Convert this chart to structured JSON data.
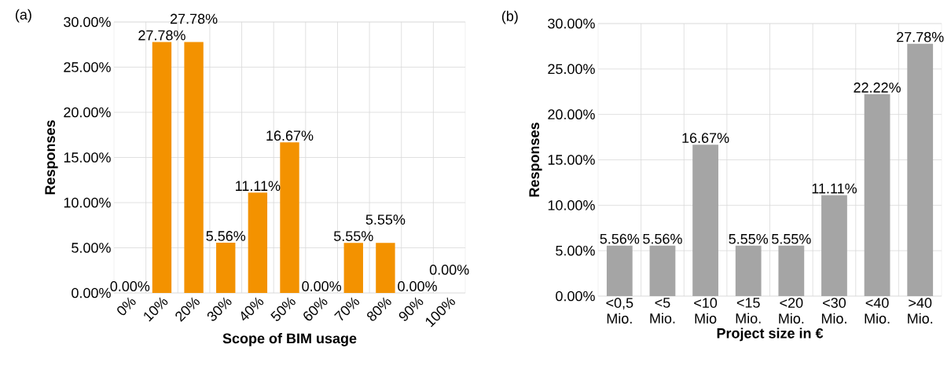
{
  "chart_data": [
    {
      "type": "bar",
      "title": "(a)",
      "xlabel": "Scope of BIM usage",
      "ylabel": "Responses",
      "categories": [
        "0%",
        "10%",
        "20%",
        "30%",
        "40%",
        "50%",
        "60%",
        "70%",
        "80%",
        "90%",
        "100%"
      ],
      "values": [
        0,
        27.78,
        27.78,
        5.56,
        11.11,
        16.67,
        0,
        5.55,
        5.55,
        0,
        0
      ],
      "value_labels": [
        "0.00%",
        "27.78%",
        "27.78%",
        "5.56%",
        "11.11%",
        "16.67%",
        "0.00%",
        "5.55%",
        "5.55%",
        "0.00%",
        "0.00%"
      ],
      "color": "#f39200",
      "ylim": [
        0,
        30
      ],
      "yticks": [
        {
          "value": 0,
          "label": "0.00%"
        },
        {
          "value": 5,
          "label": "5.00%"
        },
        {
          "value": 10,
          "label": "10.00%"
        },
        {
          "value": 15,
          "label": "15.00%"
        },
        {
          "value": 20,
          "label": "20.00%"
        },
        {
          "value": 25,
          "label": "25.00%"
        },
        {
          "value": 30,
          "label": "30.00%"
        }
      ],
      "grid": true
    },
    {
      "type": "bar",
      "title": "(b)",
      "xlabel": "Project size in €",
      "ylabel": "Responses",
      "categories": [
        "<0,5 Mio.",
        "<5 Mio.",
        "<10 Mio",
        "<15 Mio.",
        "<20 Mio.",
        "<30 Mio.",
        "<40 Mio.",
        ">40 Mio."
      ],
      "values": [
        5.56,
        5.56,
        16.67,
        5.55,
        5.55,
        11.11,
        22.22,
        27.78
      ],
      "value_labels": [
        "5.56%",
        "5.56%",
        "16.67%",
        "5.55%",
        "5.55%",
        "11.11%",
        "22.22%",
        "27.78%"
      ],
      "color": "#a5a5a5",
      "ylim": [
        0,
        30
      ],
      "yticks": [
        {
          "value": 0,
          "label": "0.00%"
        },
        {
          "value": 5,
          "label": "5.00%"
        },
        {
          "value": 10,
          "label": "10.00%"
        },
        {
          "value": 15,
          "label": "15.00%"
        },
        {
          "value": 20,
          "label": "20.00%"
        },
        {
          "value": 25,
          "label": "25.00%"
        },
        {
          "value": 30,
          "label": "30.00%"
        }
      ],
      "grid": true
    }
  ]
}
